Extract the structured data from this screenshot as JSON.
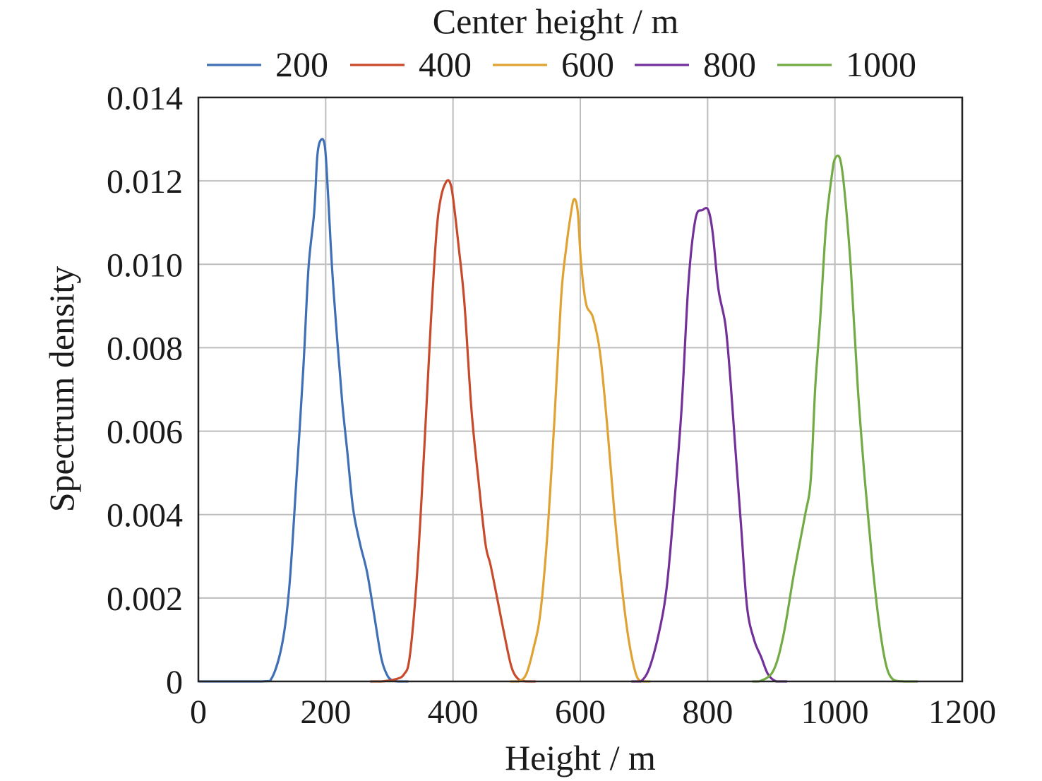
{
  "chart_data": {
    "type": "line",
    "title": "",
    "xlabel": "Height / m",
    "ylabel": "Spectrum density",
    "xlim": [
      0,
      1200
    ],
    "ylim": [
      0,
      0.014
    ],
    "xticks": [
      0,
      200,
      400,
      600,
      800,
      1000,
      1200
    ],
    "xtick_labels": [
      "0",
      "200",
      "400",
      "600",
      "800",
      "1000",
      "1200"
    ],
    "yticks": [
      0,
      0.002,
      0.004,
      0.006,
      0.008,
      0.01,
      0.012,
      0.014
    ],
    "ytick_labels": [
      "0",
      "0.002",
      "0.004",
      "0.006",
      "0.008",
      "0.010",
      "0.012",
      "0.014"
    ],
    "grid": true,
    "legend": {
      "title": "Center height / m",
      "placement": "top"
    },
    "series": [
      {
        "name": "200",
        "color": "#3f6fb5",
        "x": [
          0,
          100,
          116,
          132,
          143,
          154,
          165,
          173,
          182,
          187,
          193,
          199,
          204,
          210,
          218,
          226,
          234,
          243,
          254,
          265,
          276,
          287,
          296,
          304,
          315,
          330
        ],
        "y": [
          0,
          0,
          0.0001,
          0.00093,
          0.00229,
          0.00483,
          0.00754,
          0.00991,
          0.01126,
          0.01262,
          0.01299,
          0.01279,
          0.0116,
          0.00991,
          0.00821,
          0.00669,
          0.0055,
          0.00415,
          0.0033,
          0.00262,
          0.00161,
          0.00059,
          0.00017,
          3e-05,
          0,
          0
        ]
      },
      {
        "name": "400",
        "color": "#c84a2b",
        "x": [
          270,
          287,
          309,
          323,
          332,
          343,
          354,
          365,
          374,
          381,
          389,
          395,
          400,
          409,
          418,
          429,
          440,
          451,
          459,
          470,
          481,
          492,
          503,
          515,
          530
        ],
        "y": [
          0,
          0,
          5e-05,
          0.00017,
          0.00059,
          0.00245,
          0.00533,
          0.00855,
          0.01075,
          0.0116,
          0.01197,
          0.01197,
          0.0116,
          0.01041,
          0.00906,
          0.00652,
          0.00483,
          0.0033,
          0.00279,
          0.00195,
          0.0011,
          0.00034,
          5e-05,
          0,
          0
        ]
      },
      {
        "name": "600",
        "color": "#e0a232",
        "x": [
          490,
          503,
          515,
          526,
          537,
          548,
          559,
          570,
          578,
          584,
          590,
          596,
          601,
          609,
          620,
          631,
          642,
          653,
          664,
          675,
          686,
          695,
          710
        ],
        "y": [
          0,
          0,
          0.00017,
          0.00076,
          0.00161,
          0.00347,
          0.00618,
          0.00923,
          0.01041,
          0.01109,
          0.01156,
          0.01126,
          0.01007,
          0.00906,
          0.00872,
          0.00788,
          0.00618,
          0.00415,
          0.00245,
          0.0011,
          0.00025,
          0,
          0
        ]
      },
      {
        "name": "800",
        "color": "#73309a",
        "x": [
          680,
          695,
          709,
          725,
          736,
          747,
          759,
          770,
          781,
          792,
          801,
          808,
          817,
          828,
          836,
          844,
          853,
          862,
          873,
          884,
          895,
          908,
          925
        ],
        "y": [
          0,
          0,
          0.00034,
          0.00127,
          0.00229,
          0.00415,
          0.00652,
          0.00957,
          0.01109,
          0.0113,
          0.0113,
          0.01075,
          0.0094,
          0.00855,
          0.0072,
          0.0055,
          0.00364,
          0.00178,
          0.001,
          0.00059,
          0.00017,
          0,
          0
        ]
      },
      {
        "name": "1000",
        "color": "#72ab44",
        "x": [
          870,
          881,
          903,
          919,
          936,
          953,
          962,
          969,
          977,
          986,
          995,
          1000,
          1008,
          1015,
          1025,
          1036,
          1047,
          1058,
          1069,
          1080,
          1091,
          1108,
          1130
        ],
        "y": [
          0,
          0,
          0.00025,
          0.0011,
          0.00262,
          0.00398,
          0.00483,
          0.00703,
          0.00872,
          0.01092,
          0.01211,
          0.01253,
          0.01253,
          0.01177,
          0.0099,
          0.00703,
          0.00483,
          0.00296,
          0.00144,
          0.00042,
          5e-05,
          0,
          0
        ]
      }
    ]
  }
}
